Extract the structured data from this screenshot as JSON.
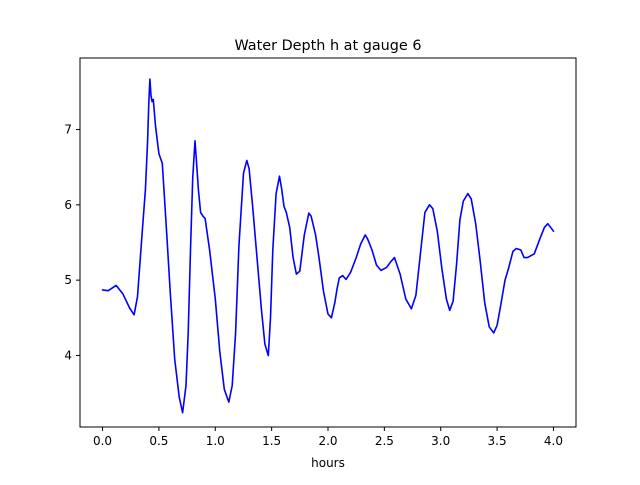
{
  "chart_data": {
    "type": "line",
    "title": "Water Depth h at gauge 6",
    "xlabel": "hours",
    "ylabel": "",
    "xlim": [
      -0.2,
      4.2
    ],
    "ylim": [
      3.05,
      7.95
    ],
    "xticks": [
      0.0,
      0.5,
      1.0,
      1.5,
      2.0,
      2.5,
      3.0,
      3.5,
      4.0
    ],
    "xtick_labels": [
      "0.0",
      "0.5",
      "1.0",
      "1.5",
      "2.0",
      "2.5",
      "3.0",
      "3.5",
      "4.0"
    ],
    "yticks": [
      4,
      5,
      6,
      7
    ],
    "ytick_labels": [
      "4",
      "5",
      "6",
      "7"
    ],
    "grid": false,
    "legend": null,
    "series": [
      {
        "color": "#0000ff",
        "x": [
          0.0,
          0.05,
          0.12,
          0.18,
          0.24,
          0.28,
          0.31,
          0.35,
          0.38,
          0.4,
          0.41,
          0.42,
          0.43,
          0.44,
          0.45,
          0.47,
          0.5,
          0.53,
          0.57,
          0.6,
          0.64,
          0.68,
          0.71,
          0.74,
          0.76,
          0.78,
          0.8,
          0.82,
          0.83,
          0.85,
          0.87,
          0.89,
          0.91,
          0.95,
          1.0,
          1.04,
          1.08,
          1.12,
          1.15,
          1.18,
          1.21,
          1.25,
          1.28,
          1.3,
          1.33,
          1.37,
          1.41,
          1.44,
          1.47,
          1.49,
          1.51,
          1.54,
          1.57,
          1.59,
          1.61,
          1.63,
          1.66,
          1.69,
          1.72,
          1.75,
          1.79,
          1.83,
          1.85,
          1.89,
          1.92,
          1.96,
          2.0,
          2.03,
          2.06,
          2.08,
          2.1,
          2.13,
          2.16,
          2.2,
          2.25,
          2.29,
          2.33,
          2.35,
          2.39,
          2.43,
          2.47,
          2.52,
          2.56,
          2.59,
          2.64,
          2.69,
          2.74,
          2.78,
          2.82,
          2.86,
          2.9,
          2.93,
          2.97,
          3.01,
          3.05,
          3.08,
          3.11,
          3.14,
          3.17,
          3.2,
          3.24,
          3.27,
          3.31,
          3.35,
          3.39,
          3.43,
          3.47,
          3.5,
          3.53,
          3.57,
          3.6,
          3.64,
          3.67,
          3.71,
          3.74,
          3.77,
          3.83,
          3.88,
          3.92,
          3.95,
          4.0
        ],
        "y": [
          4.87,
          4.86,
          4.93,
          4.82,
          4.63,
          4.54,
          4.78,
          5.6,
          6.2,
          6.85,
          7.35,
          7.67,
          7.45,
          7.37,
          7.4,
          7.05,
          6.68,
          6.55,
          5.6,
          4.85,
          3.95,
          3.45,
          3.24,
          3.6,
          4.3,
          5.4,
          6.35,
          6.85,
          6.65,
          6.2,
          5.9,
          5.85,
          5.82,
          5.4,
          4.75,
          4.05,
          3.55,
          3.38,
          3.6,
          4.3,
          5.45,
          6.42,
          6.59,
          6.48,
          6.0,
          5.3,
          4.6,
          4.15,
          4.0,
          4.5,
          5.4,
          6.15,
          6.38,
          6.2,
          5.98,
          5.9,
          5.7,
          5.3,
          5.08,
          5.12,
          5.6,
          5.89,
          5.85,
          5.6,
          5.3,
          4.85,
          4.55,
          4.5,
          4.7,
          4.88,
          5.03,
          5.06,
          5.01,
          5.1,
          5.3,
          5.48,
          5.6,
          5.55,
          5.4,
          5.2,
          5.13,
          5.17,
          5.25,
          5.3,
          5.08,
          4.75,
          4.62,
          4.8,
          5.35,
          5.9,
          6.0,
          5.95,
          5.65,
          5.15,
          4.75,
          4.6,
          4.72,
          5.2,
          5.8,
          6.05,
          6.15,
          6.08,
          5.75,
          5.25,
          4.7,
          4.38,
          4.3,
          4.4,
          4.65,
          5.0,
          5.15,
          5.38,
          5.42,
          5.4,
          5.3,
          5.3,
          5.35,
          5.55,
          5.7,
          5.75,
          5.65
        ]
      }
    ]
  }
}
